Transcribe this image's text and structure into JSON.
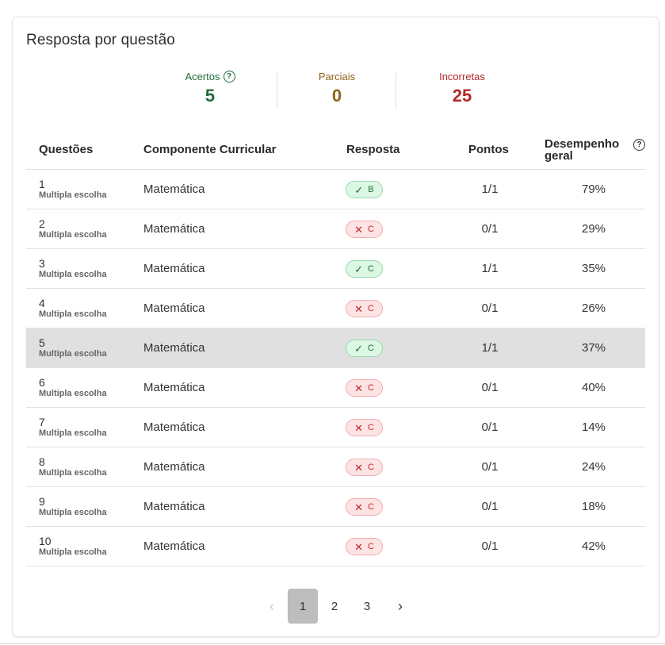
{
  "card": {
    "title": "Resposta por questão"
  },
  "summary": {
    "correct": {
      "label": "Acertos",
      "value": "5",
      "help_icon": "question-circle-icon",
      "color": "#1f6b35"
    },
    "partial": {
      "label": "Parciais",
      "value": "0",
      "color": "#8c6418"
    },
    "incorrect": {
      "label": "Incorretas",
      "value": "25",
      "color": "#b12828"
    }
  },
  "table": {
    "headers": {
      "question": "Questões",
      "component": "Componente Curricular",
      "answer": "Resposta",
      "points": "Pontos",
      "performance": "Desempenho geral",
      "performance_help_icon": "question-circle-icon"
    },
    "rows": [
      {
        "number": "1",
        "type": "Multipla escolha",
        "component": "Matemática",
        "status": "correct",
        "status_icon": "check-icon",
        "answer": "B",
        "points": "1/1",
        "performance": "79%"
      },
      {
        "number": "2",
        "type": "Multipla escolha",
        "component": "Matemática",
        "status": "incorrect",
        "status_icon": "x-icon",
        "answer": "C",
        "points": "0/1",
        "performance": "29%"
      },
      {
        "number": "3",
        "type": "Multipla escolha",
        "component": "Matemática",
        "status": "correct",
        "status_icon": "check-icon",
        "answer": "C",
        "points": "1/1",
        "performance": "35%"
      },
      {
        "number": "4",
        "type": "Multipla escolha",
        "component": "Matemática",
        "status": "incorrect",
        "status_icon": "x-icon",
        "answer": "C",
        "points": "0/1",
        "performance": "26%"
      },
      {
        "number": "5",
        "type": "Multipla escolha",
        "component": "Matemática",
        "status": "correct",
        "status_icon": "check-icon",
        "answer": "C",
        "points": "1/1",
        "performance": "37%",
        "highlighted": true
      },
      {
        "number": "6",
        "type": "Multipla escolha",
        "component": "Matemática",
        "status": "incorrect",
        "status_icon": "x-icon",
        "answer": "C",
        "points": "0/1",
        "performance": "40%"
      },
      {
        "number": "7",
        "type": "Multipla escolha",
        "component": "Matemática",
        "status": "incorrect",
        "status_icon": "x-icon",
        "answer": "C",
        "points": "0/1",
        "performance": "14%"
      },
      {
        "number": "8",
        "type": "Multipla escolha",
        "component": "Matemática",
        "status": "incorrect",
        "status_icon": "x-icon",
        "answer": "C",
        "points": "0/1",
        "performance": "24%"
      },
      {
        "number": "9",
        "type": "Multipla escolha",
        "component": "Matemática",
        "status": "incorrect",
        "status_icon": "x-icon",
        "answer": "C",
        "points": "0/1",
        "performance": "18%"
      },
      {
        "number": "10",
        "type": "Multipla escolha",
        "component": "Matemática",
        "status": "incorrect",
        "status_icon": "x-icon",
        "answer": "C",
        "points": "0/1",
        "performance": "42%"
      }
    ]
  },
  "pagination": {
    "prev_icon": "chevron-left-icon",
    "next_icon": "chevron-right-icon",
    "pages": [
      "1",
      "2",
      "3"
    ],
    "current": "1"
  }
}
